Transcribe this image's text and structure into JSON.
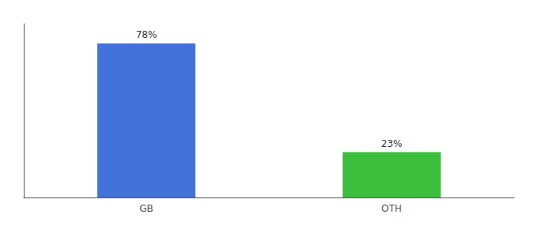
{
  "chart_data": {
    "type": "bar",
    "categories": [
      "GB",
      "OTH"
    ],
    "values": [
      78,
      23
    ],
    "value_labels": [
      "78%",
      "23%"
    ],
    "colors": [
      "#4472db",
      "#3dbf3d"
    ],
    "ylim": [
      0,
      88
    ],
    "data_labels": true,
    "tick_labels": "x",
    "grid": false
  }
}
